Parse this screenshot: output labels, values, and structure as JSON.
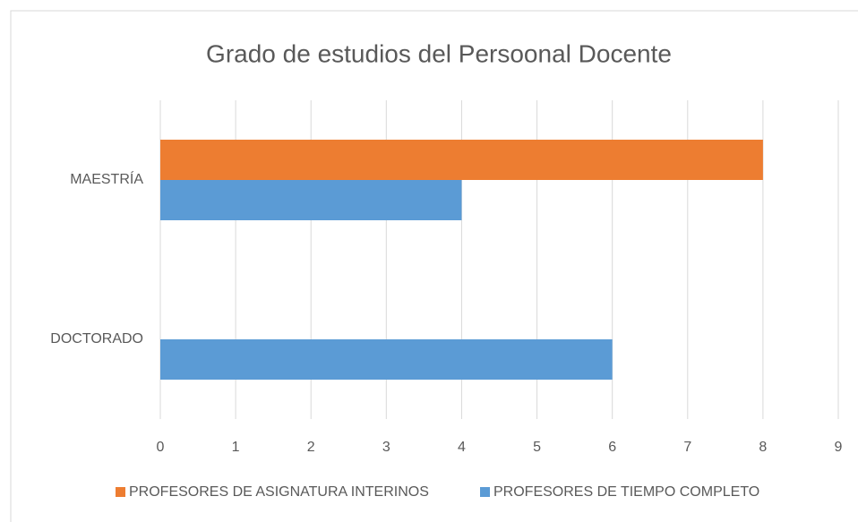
{
  "chart_data": {
    "type": "hbar",
    "title": "Grado de estudios del Persoonal Docente",
    "categories": [
      "MAESTRÍA",
      "DOCTORADO"
    ],
    "series": [
      {
        "name": "PROFESORES DE ASIGNATURA INTERINOS",
        "color": "#ed7d31",
        "values": [
          8,
          0
        ]
      },
      {
        "name": "PROFESORES DE TIEMPO COMPLETO",
        "color": "#5b9bd5",
        "values": [
          4,
          6
        ]
      }
    ],
    "xlim": [
      0,
      9
    ],
    "xticks": [
      0,
      1,
      2,
      3,
      4,
      5,
      6,
      7,
      8,
      9
    ],
    "grid": true,
    "legend": "bottom"
  }
}
